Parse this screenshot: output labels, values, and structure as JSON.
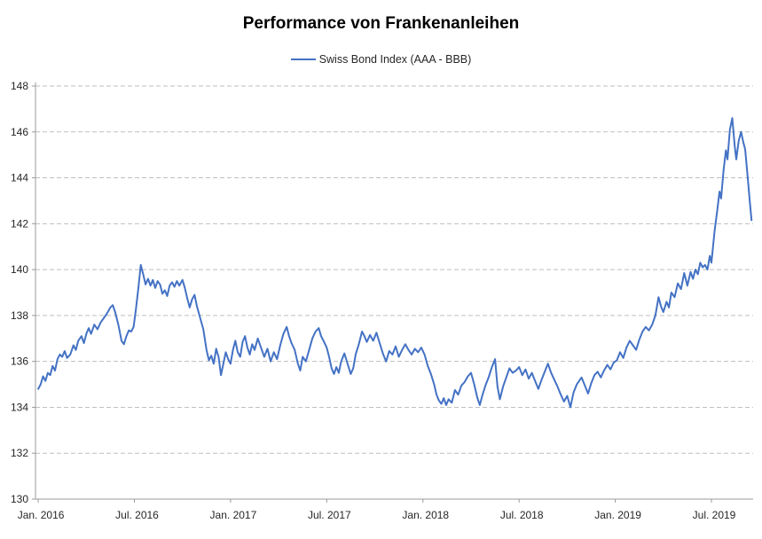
{
  "page": {
    "background": "#ffffff"
  },
  "chart_data": {
    "type": "line",
    "title": "Performance von Frankenanleihen",
    "legend": {
      "position": "top",
      "entries": [
        {
          "label": "Swiss Bond Index (AAA - BBB)",
          "color": "#4472C4"
        }
      ]
    },
    "xlabel": "",
    "ylabel": "",
    "ylim": [
      130,
      148
    ],
    "ytick_step": 2,
    "ytick_labels": [
      "130",
      "132",
      "134",
      "136",
      "138",
      "140",
      "142",
      "144",
      "146",
      "148"
    ],
    "xtick_labels": [
      "Jan. 2016",
      "Jul. 2016",
      "Jan. 2017",
      "Jul. 2017",
      "Jan. 2018",
      "Jul. 2018",
      "Jan. 2019",
      "Jul. 2019"
    ],
    "xtick_month_index": [
      0,
      6,
      12,
      18,
      24,
      30,
      36,
      42
    ],
    "x_unit": "months since Jan 2016",
    "xlim_months": [
      -0.17,
      44.6
    ],
    "grid": {
      "show": true,
      "style": "dashed",
      "color": "#BFBFBF"
    },
    "axis_color": "#9B9B9B",
    "series": [
      {
        "name": "Swiss Bond Index (AAA - BBB)",
        "color": "#4472C4",
        "points": [
          [
            0,
            134.8
          ],
          [
            0.15,
            135.0
          ],
          [
            0.3,
            135.35
          ],
          [
            0.45,
            135.15
          ],
          [
            0.6,
            135.5
          ],
          [
            0.75,
            135.4
          ],
          [
            0.9,
            135.8
          ],
          [
            1.05,
            135.6
          ],
          [
            1.2,
            136.1
          ],
          [
            1.35,
            136.3
          ],
          [
            1.5,
            136.2
          ],
          [
            1.65,
            136.45
          ],
          [
            1.8,
            136.15
          ],
          [
            2,
            136.3
          ],
          [
            2.2,
            136.7
          ],
          [
            2.35,
            136.5
          ],
          [
            2.5,
            136.9
          ],
          [
            2.7,
            137.1
          ],
          [
            2.85,
            136.8
          ],
          [
            3,
            137.2
          ],
          [
            3.15,
            137.45
          ],
          [
            3.3,
            137.2
          ],
          [
            3.5,
            137.6
          ],
          [
            3.7,
            137.4
          ],
          [
            3.9,
            137.7
          ],
          [
            4.1,
            137.9
          ],
          [
            4.3,
            138.1
          ],
          [
            4.5,
            138.35
          ],
          [
            4.65,
            138.45
          ],
          [
            4.8,
            138.15
          ],
          [
            5,
            137.6
          ],
          [
            5.2,
            136.9
          ],
          [
            5.35,
            136.75
          ],
          [
            5.5,
            137.1
          ],
          [
            5.65,
            137.35
          ],
          [
            5.8,
            137.3
          ],
          [
            5.95,
            137.5
          ],
          [
            6.1,
            138.3
          ],
          [
            6.25,
            139.2
          ],
          [
            6.4,
            140.2
          ],
          [
            6.55,
            139.8
          ],
          [
            6.7,
            139.35
          ],
          [
            6.85,
            139.6
          ],
          [
            7,
            139.3
          ],
          [
            7.15,
            139.55
          ],
          [
            7.3,
            139.2
          ],
          [
            7.45,
            139.5
          ],
          [
            7.6,
            139.35
          ],
          [
            7.75,
            138.95
          ],
          [
            7.9,
            139.1
          ],
          [
            8.05,
            138.85
          ],
          [
            8.2,
            139.3
          ],
          [
            8.35,
            139.45
          ],
          [
            8.5,
            139.25
          ],
          [
            8.65,
            139.5
          ],
          [
            8.8,
            139.3
          ],
          [
            9,
            139.55
          ],
          [
            9.15,
            139.2
          ],
          [
            9.3,
            138.75
          ],
          [
            9.45,
            138.35
          ],
          [
            9.6,
            138.7
          ],
          [
            9.75,
            138.9
          ],
          [
            9.9,
            138.4
          ],
          [
            10.1,
            137.9
          ],
          [
            10.3,
            137.4
          ],
          [
            10.5,
            136.5
          ],
          [
            10.65,
            136.05
          ],
          [
            10.8,
            136.25
          ],
          [
            10.95,
            135.9
          ],
          [
            11.1,
            136.55
          ],
          [
            11.25,
            136.2
          ],
          [
            11.4,
            135.4
          ],
          [
            11.55,
            135.9
          ],
          [
            11.7,
            136.4
          ],
          [
            11.85,
            136.1
          ],
          [
            12,
            135.9
          ],
          [
            12.15,
            136.5
          ],
          [
            12.3,
            136.9
          ],
          [
            12.45,
            136.4
          ],
          [
            12.6,
            136.2
          ],
          [
            12.75,
            136.85
          ],
          [
            12.9,
            137.1
          ],
          [
            13.05,
            136.6
          ],
          [
            13.2,
            136.3
          ],
          [
            13.35,
            136.75
          ],
          [
            13.5,
            136.5
          ],
          [
            13.7,
            137
          ],
          [
            13.9,
            136.6
          ],
          [
            14.1,
            136.2
          ],
          [
            14.3,
            136.55
          ],
          [
            14.5,
            136
          ],
          [
            14.7,
            136.4
          ],
          [
            14.9,
            136.1
          ],
          [
            15.1,
            136.7
          ],
          [
            15.3,
            137.2
          ],
          [
            15.5,
            137.5
          ],
          [
            15.65,
            137.1
          ],
          [
            15.8,
            136.8
          ],
          [
            16,
            136.5
          ],
          [
            16.2,
            135.9
          ],
          [
            16.35,
            135.6
          ],
          [
            16.5,
            136.2
          ],
          [
            16.7,
            136
          ],
          [
            16.9,
            136.5
          ],
          [
            17.1,
            137
          ],
          [
            17.3,
            137.3
          ],
          [
            17.5,
            137.45
          ],
          [
            17.65,
            137.1
          ],
          [
            17.8,
            136.9
          ],
          [
            18,
            136.6
          ],
          [
            18.15,
            136.2
          ],
          [
            18.3,
            135.7
          ],
          [
            18.45,
            135.45
          ],
          [
            18.6,
            135.75
          ],
          [
            18.75,
            135.5
          ],
          [
            18.9,
            136
          ],
          [
            19.1,
            136.35
          ],
          [
            19.3,
            135.9
          ],
          [
            19.5,
            135.45
          ],
          [
            19.65,
            135.7
          ],
          [
            19.8,
            136.3
          ],
          [
            20,
            136.75
          ],
          [
            20.2,
            137.3
          ],
          [
            20.35,
            137.1
          ],
          [
            20.5,
            136.85
          ],
          [
            20.7,
            137.15
          ],
          [
            20.9,
            136.9
          ],
          [
            21.1,
            137.25
          ],
          [
            21.3,
            136.8
          ],
          [
            21.5,
            136.35
          ],
          [
            21.7,
            136
          ],
          [
            21.9,
            136.45
          ],
          [
            22.1,
            136.3
          ],
          [
            22.3,
            136.65
          ],
          [
            22.5,
            136.2
          ],
          [
            22.7,
            136.5
          ],
          [
            22.9,
            136.75
          ],
          [
            23.1,
            136.5
          ],
          [
            23.3,
            136.3
          ],
          [
            23.5,
            136.55
          ],
          [
            23.7,
            136.4
          ],
          [
            23.9,
            136.6
          ],
          [
            24.1,
            136.3
          ],
          [
            24.3,
            135.8
          ],
          [
            24.5,
            135.45
          ],
          [
            24.7,
            135
          ],
          [
            24.85,
            134.55
          ],
          [
            25,
            134.3
          ],
          [
            25.15,
            134.15
          ],
          [
            25.3,
            134.4
          ],
          [
            25.45,
            134.1
          ],
          [
            25.6,
            134.35
          ],
          [
            25.8,
            134.2
          ],
          [
            26,
            134.75
          ],
          [
            26.2,
            134.55
          ],
          [
            26.4,
            134.95
          ],
          [
            26.6,
            135.1
          ],
          [
            26.8,
            135.35
          ],
          [
            27,
            135.5
          ],
          [
            27.2,
            135
          ],
          [
            27.4,
            134.4
          ],
          [
            27.55,
            134.1
          ],
          [
            27.7,
            134.5
          ],
          [
            27.9,
            134.95
          ],
          [
            28.1,
            135.3
          ],
          [
            28.3,
            135.75
          ],
          [
            28.5,
            136.1
          ],
          [
            28.65,
            134.9
          ],
          [
            28.8,
            134.35
          ],
          [
            29,
            134.9
          ],
          [
            29.2,
            135.3
          ],
          [
            29.4,
            135.7
          ],
          [
            29.6,
            135.5
          ],
          [
            29.8,
            135.6
          ],
          [
            30,
            135.75
          ],
          [
            30.2,
            135.4
          ],
          [
            30.4,
            135.65
          ],
          [
            30.6,
            135.25
          ],
          [
            30.8,
            135.5
          ],
          [
            31,
            135.15
          ],
          [
            31.2,
            134.8
          ],
          [
            31.4,
            135.2
          ],
          [
            31.6,
            135.55
          ],
          [
            31.8,
            135.9
          ],
          [
            32,
            135.5
          ],
          [
            32.2,
            135.2
          ],
          [
            32.4,
            134.9
          ],
          [
            32.6,
            134.55
          ],
          [
            32.8,
            134.25
          ],
          [
            33,
            134.5
          ],
          [
            33.2,
            134
          ],
          [
            33.4,
            134.65
          ],
          [
            33.6,
            135
          ],
          [
            33.9,
            135.3
          ],
          [
            34.1,
            134.95
          ],
          [
            34.3,
            134.6
          ],
          [
            34.5,
            135.05
          ],
          [
            34.7,
            135.4
          ],
          [
            34.9,
            135.55
          ],
          [
            35.1,
            135.3
          ],
          [
            35.3,
            135.6
          ],
          [
            35.5,
            135.85
          ],
          [
            35.7,
            135.65
          ],
          [
            35.9,
            135.95
          ],
          [
            36.1,
            136.05
          ],
          [
            36.3,
            136.4
          ],
          [
            36.5,
            136.15
          ],
          [
            36.7,
            136.6
          ],
          [
            36.9,
            136.9
          ],
          [
            37.1,
            136.7
          ],
          [
            37.3,
            136.5
          ],
          [
            37.5,
            136.95
          ],
          [
            37.7,
            137.3
          ],
          [
            37.9,
            137.5
          ],
          [
            38.1,
            137.35
          ],
          [
            38.3,
            137.6
          ],
          [
            38.5,
            138
          ],
          [
            38.7,
            138.8
          ],
          [
            38.85,
            138.4
          ],
          [
            39,
            138.15
          ],
          [
            39.2,
            138.6
          ],
          [
            39.35,
            138.35
          ],
          [
            39.5,
            139
          ],
          [
            39.7,
            138.8
          ],
          [
            39.9,
            139.4
          ],
          [
            40.1,
            139.15
          ],
          [
            40.3,
            139.85
          ],
          [
            40.5,
            139.3
          ],
          [
            40.7,
            139.9
          ],
          [
            40.85,
            139.6
          ],
          [
            41,
            140
          ],
          [
            41.15,
            139.8
          ],
          [
            41.3,
            140.3
          ],
          [
            41.45,
            140.1
          ],
          [
            41.6,
            140.2
          ],
          [
            41.75,
            140
          ],
          [
            41.9,
            140.6
          ],
          [
            42,
            140.3
          ],
          [
            42.1,
            141
          ],
          [
            42.2,
            141.7
          ],
          [
            42.35,
            142.5
          ],
          [
            42.5,
            143.4
          ],
          [
            42.6,
            143.1
          ],
          [
            42.75,
            144.3
          ],
          [
            42.9,
            145.2
          ],
          [
            43,
            144.8
          ],
          [
            43.15,
            146.1
          ],
          [
            43.3,
            146.6
          ],
          [
            43.45,
            145.4
          ],
          [
            43.55,
            144.8
          ],
          [
            43.7,
            145.6
          ],
          [
            43.85,
            146
          ],
          [
            44,
            145.5
          ],
          [
            44.1,
            145.25
          ],
          [
            44.25,
            144.1
          ],
          [
            44.4,
            142.9
          ],
          [
            44.5,
            142.15
          ]
        ]
      }
    ]
  }
}
